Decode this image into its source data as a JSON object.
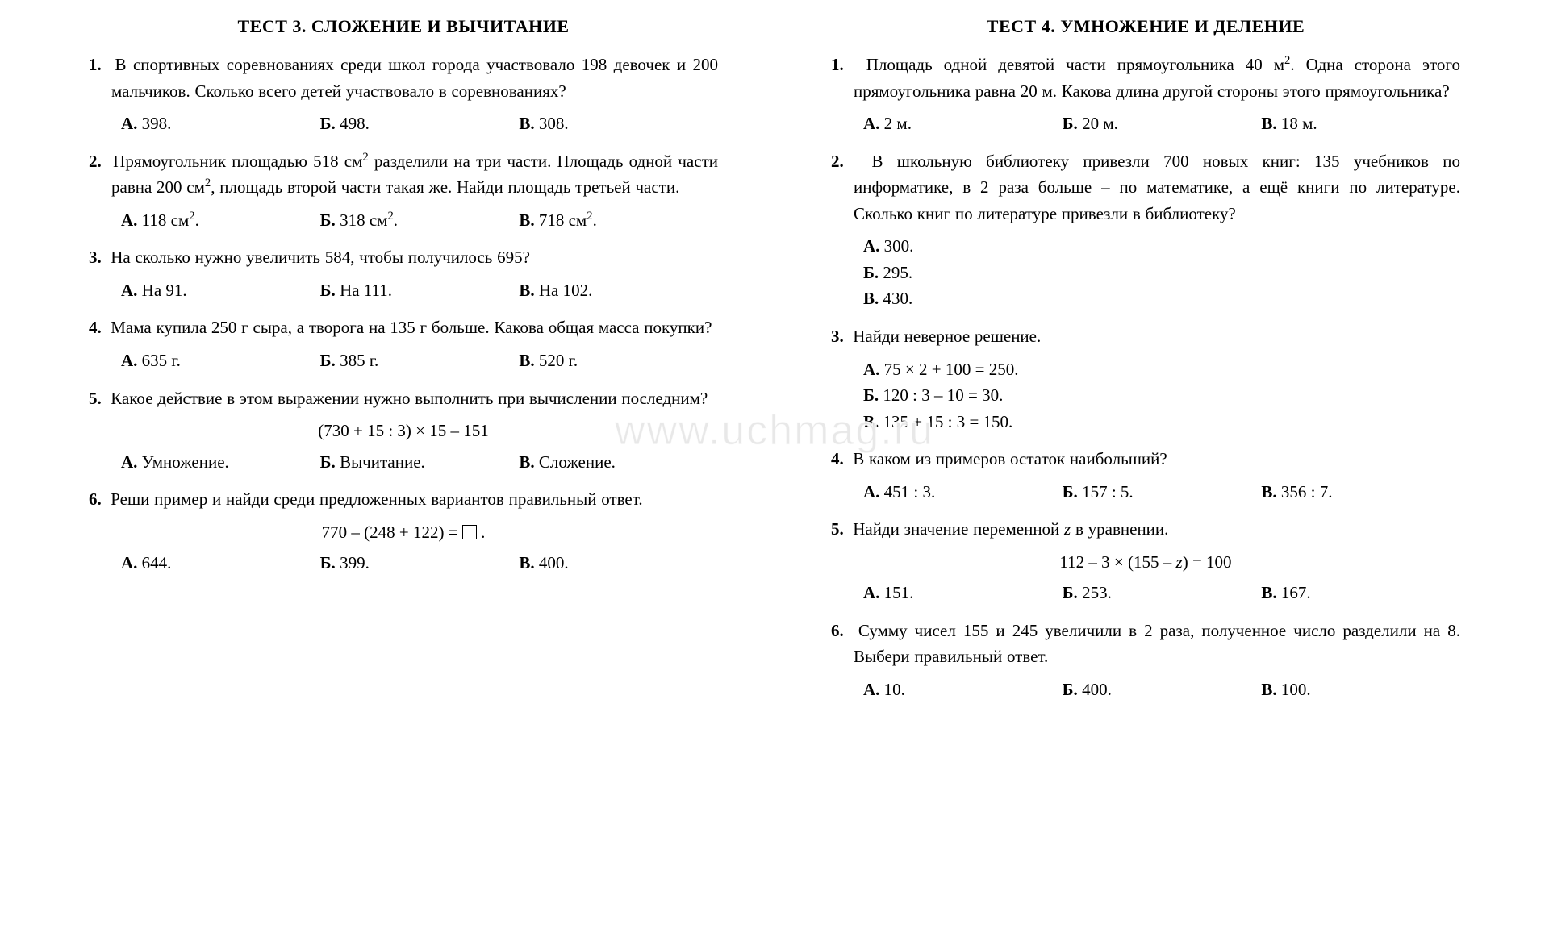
{
  "watermark": "www.uchmag.ru",
  "left": {
    "title": "ТЕСТ  3. СЛОЖЕНИЕ И ВЫЧИТАНИЕ",
    "q1": {
      "num": "1.",
      "text": "В спортивных соревнованиях среди школ города участвовало 198 девочек и 200 мальчиков. Сколько всего детей участвовало в соревнованиях?",
      "a": {
        "lab": "А.",
        "val": "398."
      },
      "b": {
        "lab": "Б.",
        "val": "498."
      },
      "c": {
        "lab": "В.",
        "val": "308."
      }
    },
    "q2": {
      "num": "2.",
      "text_pre": "Прямоугольник площадью 518 см",
      "text_mid": " разделили на три части. Площадь одной части равна 200 см",
      "text_post": ", площадь второй части такая же. Найди площадь третьей части.",
      "a": {
        "lab": "А.",
        "val_pre": "118  см",
        "val_post": "."
      },
      "b": {
        "lab": "Б.",
        "val_pre": "318  см",
        "val_post": "."
      },
      "c": {
        "lab": "В.",
        "val_pre": "718  см",
        "val_post": "."
      }
    },
    "q3": {
      "num": "3.",
      "text": "На сколько нужно увеличить 584, чтобы получилось 695?",
      "a": {
        "lab": "А.",
        "val": "На 91."
      },
      "b": {
        "lab": "Б.",
        "val": "На 111."
      },
      "c": {
        "lab": "В.",
        "val": "На 102."
      }
    },
    "q4": {
      "num": "4.",
      "text": "Мама купила 250 г сыра, а творога на 135 г больше. Какова общая масса покупки?",
      "a": {
        "lab": "А.",
        "val": "635  г."
      },
      "b": {
        "lab": "Б.",
        "val": "385  г."
      },
      "c": {
        "lab": "В.",
        "val": "520  г."
      }
    },
    "q5": {
      "num": "5.",
      "text": "Какое действие в этом выражении нужно выполнить при вы­числении последним?",
      "formula": "(730 + 15 : 3) × 15 – 151",
      "a": {
        "lab": "А.",
        "val": "Умножение."
      },
      "b": {
        "lab": "Б.",
        "val": "Вычитание."
      },
      "c": {
        "lab": "В.",
        "val": "Сложение."
      }
    },
    "q6": {
      "num": "6.",
      "text": "Реши пример и найди среди предложенных вариантов пра­вильный ответ.",
      "formula_pre": "770 – (248 + 122) = ",
      "formula_post": " .",
      "a": {
        "lab": "А.",
        "val": "644."
      },
      "b": {
        "lab": "Б.",
        "val": "399."
      },
      "c": {
        "lab": "В.",
        "val": "400."
      }
    }
  },
  "right": {
    "title": "ТЕСТ  4. УМНОЖЕНИЕ И ДЕЛЕНИЕ",
    "q1": {
      "num": "1.",
      "text_pre": "Площадь одной девятой части прямоугольника 40 м",
      "text_post": ". Одна сторона этого прямоугольника равна 20 м. Какова длина другой стороны этого прямоугольника?",
      "a": {
        "lab": "А.",
        "val": "2  м."
      },
      "b": {
        "lab": "Б.",
        "val": "20  м."
      },
      "c": {
        "lab": "В.",
        "val": "18  м."
      }
    },
    "q2": {
      "num": "2.",
      "text": "В школьную библиотеку привезли 700 новых книг: 135 учеб­ников по информатике, в 2 раза больше – по математике, а ещё книги по литературе. Сколько книг по литературе при­везли в библиотеку?",
      "a": {
        "lab": "А.",
        "val": "300."
      },
      "b": {
        "lab": "Б.",
        "val": "295."
      },
      "c": {
        "lab": "В.",
        "val": "430."
      }
    },
    "q3": {
      "num": "3.",
      "text": "Найди неверное решение.",
      "a": {
        "lab": "А.",
        "val": "75 × 2 + 100 = 250."
      },
      "b": {
        "lab": "Б.",
        "val": "120 : 3 – 10 = 30."
      },
      "c": {
        "lab": "В.",
        "val": "135 + 15 : 3 = 150."
      }
    },
    "q4": {
      "num": "4.",
      "text": "В каком из примеров остаток наибольший?",
      "a": {
        "lab": "А.",
        "val": "451 : 3."
      },
      "b": {
        "lab": "Б.",
        "val": "157 : 5."
      },
      "c": {
        "lab": "В.",
        "val": "356 : 7."
      }
    },
    "q5": {
      "num": "5.",
      "text_pre": "Найди значение переменной ",
      "var": "z",
      "text_post": " в уравнении.",
      "formula_pre": "112 – 3 × (155 – ",
      "formula_var": "z",
      "formula_post": ") = 100",
      "a": {
        "lab": "А.",
        "val": "151."
      },
      "b": {
        "lab": "Б.",
        "val": "253."
      },
      "c": {
        "lab": "В.",
        "val": "167."
      }
    },
    "q6": {
      "num": "6.",
      "text": "Сумму чисел 155 и 245 увеличили в 2 раза, полученное число разделили на 8. Выбери правильный ответ.",
      "a": {
        "lab": "А.",
        "val": "10."
      },
      "b": {
        "lab": "Б.",
        "val": "400."
      },
      "c": {
        "lab": "В.",
        "val": "100."
      }
    }
  }
}
